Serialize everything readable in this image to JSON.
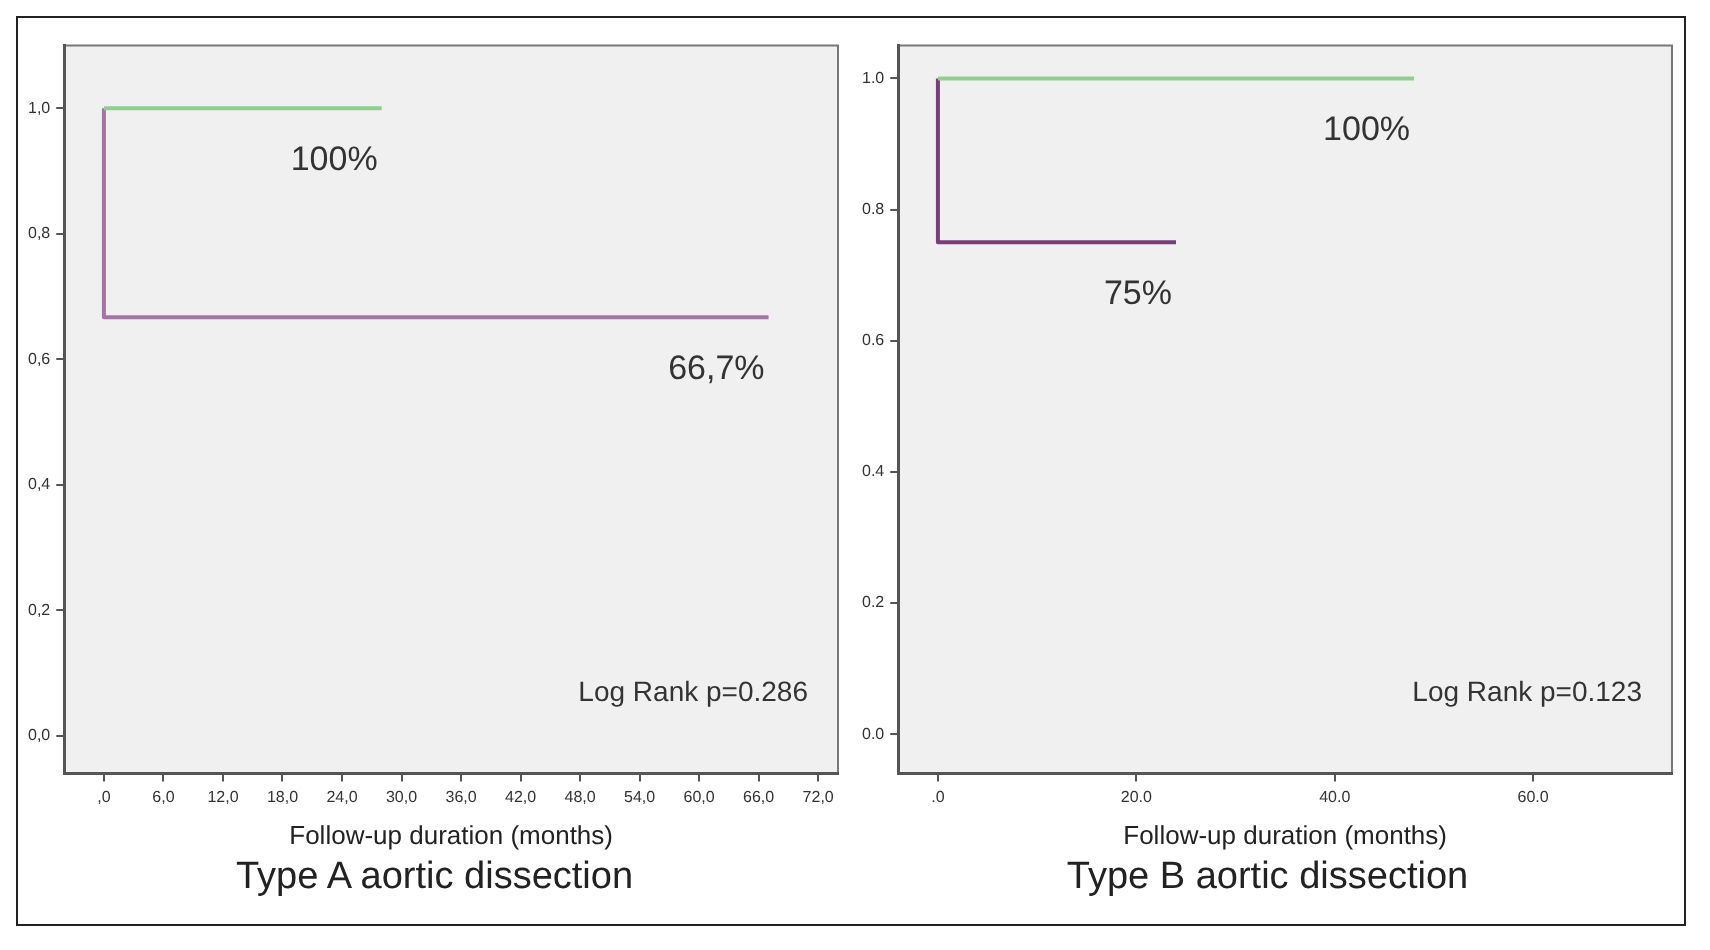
{
  "chart_data": [
    {
      "type": "step",
      "title": "Type A aortic dissection",
      "xlabel": "Follow-up duration (months)",
      "series": [
        {
          "color": "#8fd08f",
          "x": [
            0,
            28
          ],
          "values": [
            1,
            1
          ]
        },
        {
          "color": "#a874a8",
          "x": [
            0,
            6,
            67
          ],
          "values": [
            1,
            0.667,
            0.667
          ]
        }
      ],
      "xlim": [
        -4,
        74
      ],
      "ylim": [
        -0.06,
        1.1
      ],
      "xticks": [
        {
          "value": 0,
          "label": ",0"
        },
        {
          "value": 6,
          "label": "6,0"
        },
        {
          "value": 12,
          "label": "12,0"
        },
        {
          "value": 18,
          "label": "18,0"
        },
        {
          "value": 24,
          "label": "24,0"
        },
        {
          "value": 30,
          "label": "30,0"
        },
        {
          "value": 36,
          "label": "36,0"
        },
        {
          "value": 42,
          "label": "42,0"
        },
        {
          "value": 48,
          "label": "48,0"
        },
        {
          "value": 54,
          "label": "54,0"
        },
        {
          "value": 60,
          "label": "60,0"
        },
        {
          "value": 66,
          "label": "66,0"
        },
        {
          "value": 72,
          "label": "72,0"
        }
      ],
      "yticks": [
        {
          "value": 0,
          "label": "0,0"
        },
        {
          "value": 0.2,
          "label": "0,2"
        },
        {
          "value": 0.4,
          "label": "0,4"
        },
        {
          "value": 0.6,
          "label": "0,6"
        },
        {
          "value": 0.8,
          "label": "0,8"
        },
        {
          "value": 1,
          "label": "1,0"
        }
      ],
      "annotations": [
        {
          "text": "100%",
          "x": 28,
          "y": 1
        },
        {
          "text": "66,7%",
          "x": 67,
          "y": 0.667
        },
        "Log Rank p=0.286"
      ],
      "grid": false,
      "legend": false
    },
    {
      "type": "step",
      "title": "Type B aortic dissection",
      "xlabel": "Follow-up duration (months)",
      "series": [
        {
          "color": "#8fd08f",
          "x": [
            0,
            48
          ],
          "values": [
            1,
            1
          ]
        },
        {
          "color": "#7a3d7a",
          "x": [
            0,
            6,
            24
          ],
          "values": [
            1,
            0.75,
            0.75
          ]
        }
      ],
      "xlim": [
        -4,
        74
      ],
      "ylim": [
        -0.06,
        1.05
      ],
      "xticks": [
        {
          "value": 0,
          "label": ".0"
        },
        {
          "value": 20,
          "label": "20.0"
        },
        {
          "value": 40,
          "label": "40.0"
        },
        {
          "value": 60,
          "label": "60.0"
        }
      ],
      "yticks": [
        {
          "value": 0,
          "label": "0.0"
        },
        {
          "value": 0.2,
          "label": "0.2"
        },
        {
          "value": 0.4,
          "label": "0.4"
        },
        {
          "value": 0.6,
          "label": "0.6"
        },
        {
          "value": 0.8,
          "label": "0.8"
        },
        {
          "value": 1,
          "label": "1.0"
        }
      ],
      "annotations": [
        {
          "text": "100%",
          "x": 48,
          "y": 1
        },
        {
          "text": "75%",
          "x": 24,
          "y": 0.75
        },
        "Log Rank p=0.123"
      ],
      "grid": false,
      "legend": false
    }
  ]
}
